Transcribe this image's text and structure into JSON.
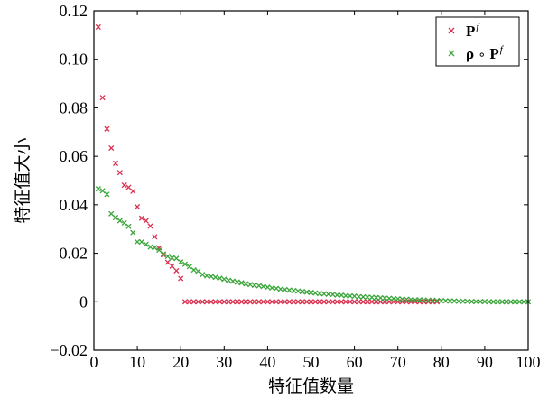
{
  "chart_data": {
    "type": "scatter",
    "xlabel": "特征值数量",
    "ylabel": "特征值大小",
    "xlim": [
      0,
      100
    ],
    "ylim": [
      -0.02,
      0.12
    ],
    "x_ticks": [
      "0",
      "10",
      "20",
      "30",
      "40",
      "50",
      "60",
      "70",
      "80",
      "90",
      "100"
    ],
    "y_ticks": [
      "−0.02",
      "0",
      "0.02",
      "0.04",
      "0.06",
      "0.08",
      "0.10",
      "0.12"
    ],
    "grid": false,
    "legend_position": "top-right",
    "series": [
      {
        "name": "P^f",
        "legend_main": "P",
        "legend_sup": "f",
        "color": "#d9304f",
        "marker": "x",
        "points": [
          [
            1,
            0.1133
          ],
          [
            2,
            0.0842
          ],
          [
            3,
            0.0713
          ],
          [
            4,
            0.0634
          ],
          [
            5,
            0.0571
          ],
          [
            6,
            0.0533
          ],
          [
            7,
            0.0481
          ],
          [
            8,
            0.0472
          ],
          [
            9,
            0.0456
          ],
          [
            10,
            0.0392
          ],
          [
            11,
            0.0345
          ],
          [
            12,
            0.0334
          ],
          [
            13,
            0.0312
          ],
          [
            14,
            0.0268
          ],
          [
            15,
            0.0222
          ],
          [
            16,
            0.0194
          ],
          [
            17,
            0.0163
          ],
          [
            18,
            0.0147
          ],
          [
            19,
            0.0128
          ],
          [
            20,
            0.0096
          ],
          [
            21,
            0.0
          ],
          [
            22,
            0.0
          ],
          [
            23,
            0.0
          ],
          [
            24,
            0.0
          ],
          [
            25,
            0.0
          ],
          [
            26,
            0.0
          ],
          [
            27,
            0.0
          ],
          [
            28,
            0.0
          ],
          [
            29,
            0.0
          ],
          [
            30,
            0.0
          ],
          [
            31,
            0.0
          ],
          [
            32,
            0.0
          ],
          [
            33,
            0.0
          ],
          [
            34,
            0.0
          ],
          [
            35,
            0.0
          ],
          [
            36,
            0.0
          ],
          [
            37,
            0.0
          ],
          [
            38,
            0.0
          ],
          [
            39,
            0.0
          ],
          [
            40,
            0.0
          ],
          [
            41,
            0.0
          ],
          [
            42,
            0.0
          ],
          [
            43,
            0.0
          ],
          [
            44,
            0.0
          ],
          [
            45,
            0.0
          ],
          [
            46,
            0.0
          ],
          [
            47,
            0.0
          ],
          [
            48,
            0.0
          ],
          [
            49,
            0.0
          ],
          [
            50,
            0.0
          ],
          [
            51,
            0.0
          ],
          [
            52,
            0.0
          ],
          [
            53,
            0.0
          ],
          [
            54,
            0.0
          ],
          [
            55,
            0.0
          ],
          [
            56,
            0.0
          ],
          [
            57,
            0.0
          ],
          [
            58,
            0.0
          ],
          [
            59,
            0.0
          ],
          [
            60,
            0.0
          ],
          [
            61,
            0.0
          ],
          [
            62,
            0.0
          ],
          [
            63,
            0.0
          ],
          [
            64,
            0.0
          ],
          [
            65,
            0.0
          ],
          [
            66,
            0.0
          ],
          [
            67,
            0.0
          ],
          [
            68,
            0.0
          ],
          [
            69,
            0.0
          ],
          [
            70,
            0.0
          ],
          [
            71,
            0.0
          ],
          [
            72,
            0.0
          ],
          [
            73,
            0.0
          ],
          [
            74,
            0.0
          ],
          [
            75,
            0.0
          ],
          [
            76,
            0.0
          ],
          [
            77,
            0.0
          ],
          [
            78,
            0.0
          ],
          [
            79,
            0.0
          ]
        ]
      },
      {
        "name": "ρ∘P^f",
        "legend_main": "ρ ∘ P",
        "legend_sup": "f",
        "color": "#3aa63a",
        "marker": "x",
        "points": [
          [
            1,
            0.0466
          ],
          [
            2,
            0.0458
          ],
          [
            3,
            0.0443
          ],
          [
            4,
            0.0363
          ],
          [
            5,
            0.0347
          ],
          [
            6,
            0.0334
          ],
          [
            7,
            0.0325
          ],
          [
            8,
            0.0311
          ],
          [
            9,
            0.0285
          ],
          [
            10,
            0.0247
          ],
          [
            11,
            0.0247
          ],
          [
            12,
            0.0237
          ],
          [
            13,
            0.0226
          ],
          [
            14,
            0.0223
          ],
          [
            15,
            0.0213
          ],
          [
            16,
            0.0197
          ],
          [
            17,
            0.0187
          ],
          [
            18,
            0.0181
          ],
          [
            19,
            0.0179
          ],
          [
            20,
            0.0164
          ],
          [
            21,
            0.0155
          ],
          [
            22,
            0.0145
          ],
          [
            23,
            0.0131
          ],
          [
            24,
            0.0126
          ],
          [
            25,
            0.0112
          ],
          [
            26,
            0.0107
          ],
          [
            27,
            0.0104
          ],
          [
            28,
            0.0101
          ],
          [
            29,
            0.0097
          ],
          [
            30,
            0.0093
          ],
          [
            31,
            0.0088
          ],
          [
            32,
            0.0085
          ],
          [
            33,
            0.0081
          ],
          [
            34,
            0.0078
          ],
          [
            35,
            0.0074
          ],
          [
            36,
            0.0071
          ],
          [
            37,
            0.0068
          ],
          [
            38,
            0.0066
          ],
          [
            39,
            0.0063
          ],
          [
            40,
            0.006
          ],
          [
            41,
            0.0057
          ],
          [
            42,
            0.0055
          ],
          [
            43,
            0.0052
          ],
          [
            44,
            0.005
          ],
          [
            45,
            0.0048
          ],
          [
            46,
            0.0046
          ],
          [
            47,
            0.0044
          ],
          [
            48,
            0.0042
          ],
          [
            49,
            0.004
          ],
          [
            50,
            0.0038
          ],
          [
            51,
            0.0036
          ],
          [
            52,
            0.0034
          ],
          [
            53,
            0.0033
          ],
          [
            54,
            0.0031
          ],
          [
            55,
            0.003
          ],
          [
            56,
            0.0028
          ],
          [
            57,
            0.0027
          ],
          [
            58,
            0.0025
          ],
          [
            59,
            0.0024
          ],
          [
            60,
            0.0023
          ],
          [
            61,
            0.0021
          ],
          [
            62,
            0.002
          ],
          [
            63,
            0.0019
          ],
          [
            64,
            0.0018
          ],
          [
            65,
            0.0017
          ],
          [
            66,
            0.0016
          ],
          [
            67,
            0.0015
          ],
          [
            68,
            0.0014
          ],
          [
            69,
            0.0013
          ],
          [
            70,
            0.0012
          ],
          [
            71,
            0.0011
          ],
          [
            72,
            0.001
          ],
          [
            73,
            0.0009
          ],
          [
            74,
            0.0008
          ],
          [
            75,
            0.0008
          ],
          [
            76,
            0.0007
          ],
          [
            77,
            0.0006
          ],
          [
            78,
            0.0006
          ],
          [
            79,
            0.0005
          ],
          [
            80,
            0.0004
          ],
          [
            81,
            0.0004
          ],
          [
            82,
            0.0003
          ],
          [
            83,
            0.0003
          ],
          [
            84,
            0.0002
          ],
          [
            85,
            0.0002
          ],
          [
            86,
            0.0002
          ],
          [
            87,
            0.0001
          ],
          [
            88,
            0.0001
          ],
          [
            89,
            0.0001
          ],
          [
            90,
            0.0001
          ],
          [
            91,
            0.0
          ],
          [
            92,
            0.0
          ],
          [
            93,
            0.0
          ],
          [
            94,
            0.0
          ],
          [
            95,
            0.0
          ],
          [
            96,
            0.0
          ],
          [
            97,
            0.0
          ],
          [
            98,
            0.0
          ],
          [
            99,
            0.0
          ],
          [
            100,
            0.0
          ]
        ]
      }
    ]
  }
}
